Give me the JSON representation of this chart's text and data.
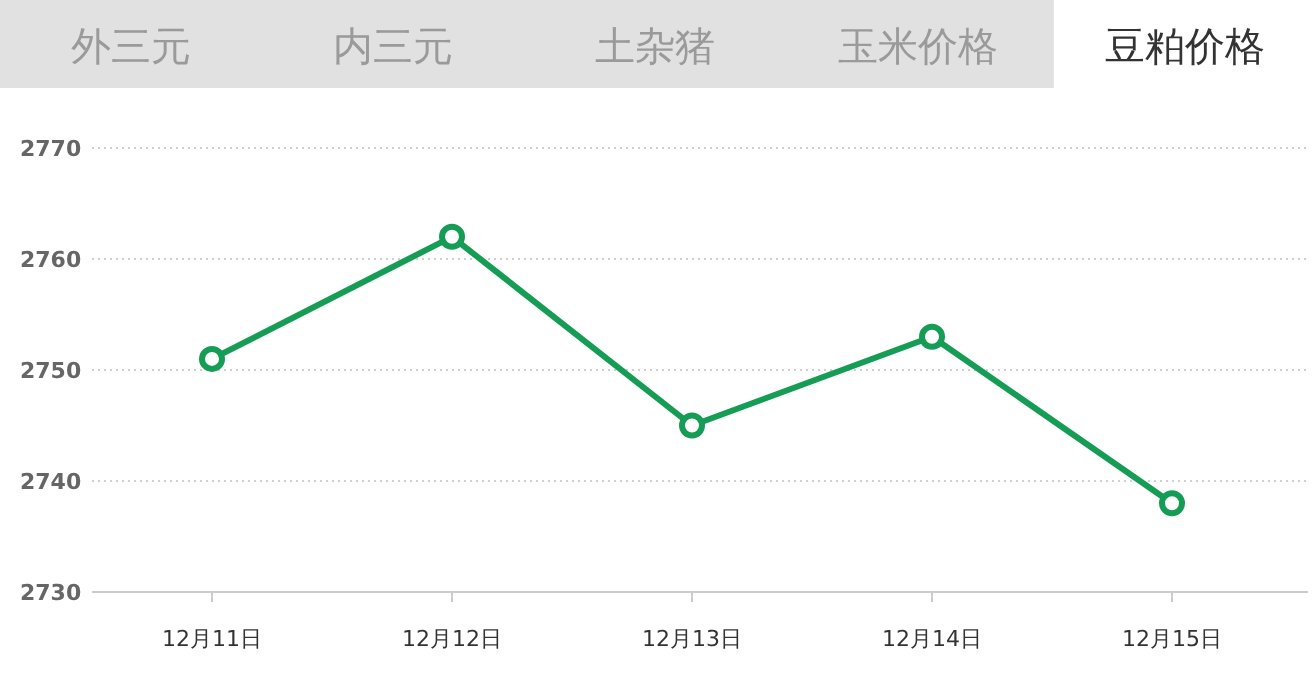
{
  "chart_data": {
    "type": "line",
    "title": "豆粕价格",
    "annotations": [
      "外三元",
      "内三元",
      "土杂猪",
      "玉米价格"
    ],
    "categories": [
      "12月11日",
      "12月12日",
      "12月13日",
      "12月14日",
      "12月15日"
    ],
    "series": [
      {
        "color": "#159c55",
        "values": [
          2751,
          2762,
          2745,
          2753,
          2738
        ]
      }
    ],
    "ylim": [
      2730,
      2770
    ],
    "yticks": [
      2730,
      2740,
      2750,
      2760,
      2770
    ],
    "grid": "y",
    "marker": "circle",
    "line_style": "solid"
  }
}
